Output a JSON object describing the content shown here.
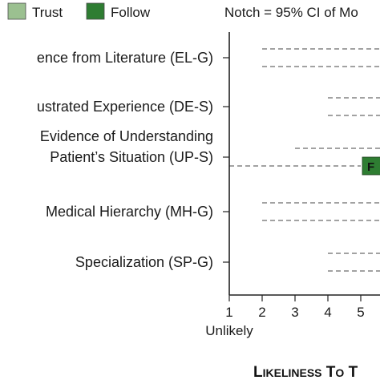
{
  "chart_data": {
    "type": "box",
    "title": "",
    "legend": {
      "placement": "top-left",
      "entries": [
        {
          "name": "Trust",
          "color": "#9bc090"
        },
        {
          "name": "Follow",
          "color": "#2e7d32"
        }
      ]
    },
    "note": "Notch = 95% CI of Mo",
    "xlabel": "Likeliness to T",
    "xlim": [
      1,
      5.6
    ],
    "x_ticks": [
      1,
      2,
      3,
      4,
      5
    ],
    "x_tick_labels": [
      "1",
      "2",
      "3",
      "4",
      "5"
    ],
    "x_scale_label": "Unlikely",
    "categories": [
      {
        "label": "ence from Literature (EL-G)",
        "label_lines": [
          "ence from Literature (EL-G)"
        ]
      },
      {
        "label": "ustrated Experience (DE-S)",
        "label_lines": [
          "ustrated Experience (DE-S)"
        ]
      },
      {
        "label": "Evidence of Understanding Patient’s Situation (UP-S)",
        "label_lines": [
          "Evidence of Understanding",
          "Patient’s Situation (UP-S)"
        ]
      },
      {
        "label": "Medical Hierarchy (MH-G)",
        "label_lines": [
          "Medical Hierarchy (MH-G)"
        ]
      },
      {
        "label": "Specialization (SP-G)",
        "label_lines": [
          "Specialization (SP-G)"
        ]
      }
    ],
    "whiskers": [
      {
        "category": "ence from Literature (EL-G)",
        "series": "Trust",
        "start": 2,
        "end": 5.6
      },
      {
        "category": "ence from Literature (EL-G)",
        "series": "Follow",
        "start": 2,
        "end": 5.6
      },
      {
        "category": "ustrated Experience (DE-S)",
        "series": "Trust",
        "start": 4,
        "end": 5.6
      },
      {
        "category": "ustrated Experience (DE-S)",
        "series": "Follow",
        "start": 4,
        "end": 5.6
      },
      {
        "category": "Evidence of Understanding Patient’s Situation (UP-S)",
        "series": "Trust",
        "start": 3,
        "end": 5.6
      },
      {
        "category": "Evidence of Understanding Patient’s Situation (UP-S)",
        "series": "Follow",
        "start": 1,
        "end": 5
      },
      {
        "category": "Medical Hierarchy (MH-G)",
        "series": "Trust",
        "start": 2,
        "end": 5.6
      },
      {
        "category": "Medical Hierarchy (MH-G)",
        "series": "Follow",
        "start": 2,
        "end": 5.6
      },
      {
        "category": "Specialization (SP-G)",
        "series": "Trust",
        "start": 4,
        "end": 5.6
      },
      {
        "category": "Specialization (SP-G)",
        "series": "Follow",
        "start": 4,
        "end": 5.6
      }
    ],
    "boxes": [
      {
        "category": "Evidence of Understanding Patient’s Situation (UP-S)",
        "series": "Follow",
        "start": 5,
        "end": 5.6,
        "label": "F"
      }
    ],
    "grid": false
  }
}
